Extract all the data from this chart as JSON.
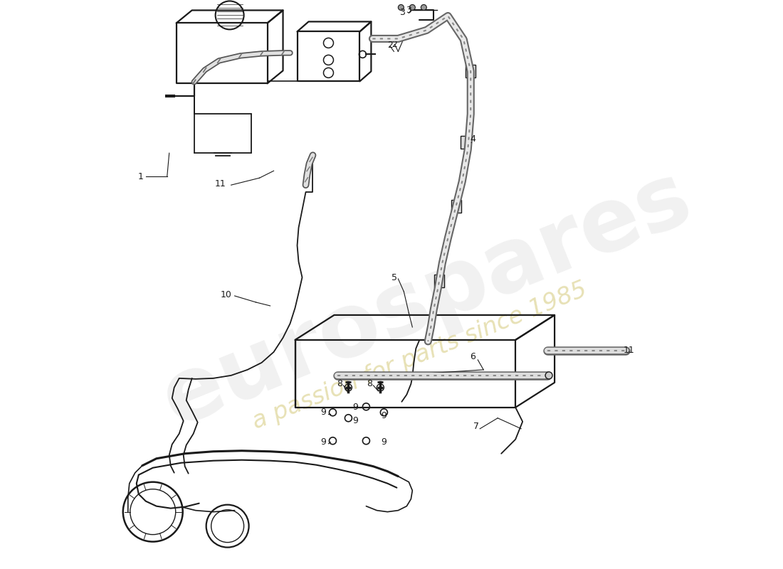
{
  "background_color": "#ffffff",
  "line_color": "#1a1a1a",
  "watermark_text1": "eurospares",
  "watermark_text2": "a passion for parts since 1985",
  "fig_width": 11.0,
  "fig_height": 8.0,
  "dpi": 100
}
